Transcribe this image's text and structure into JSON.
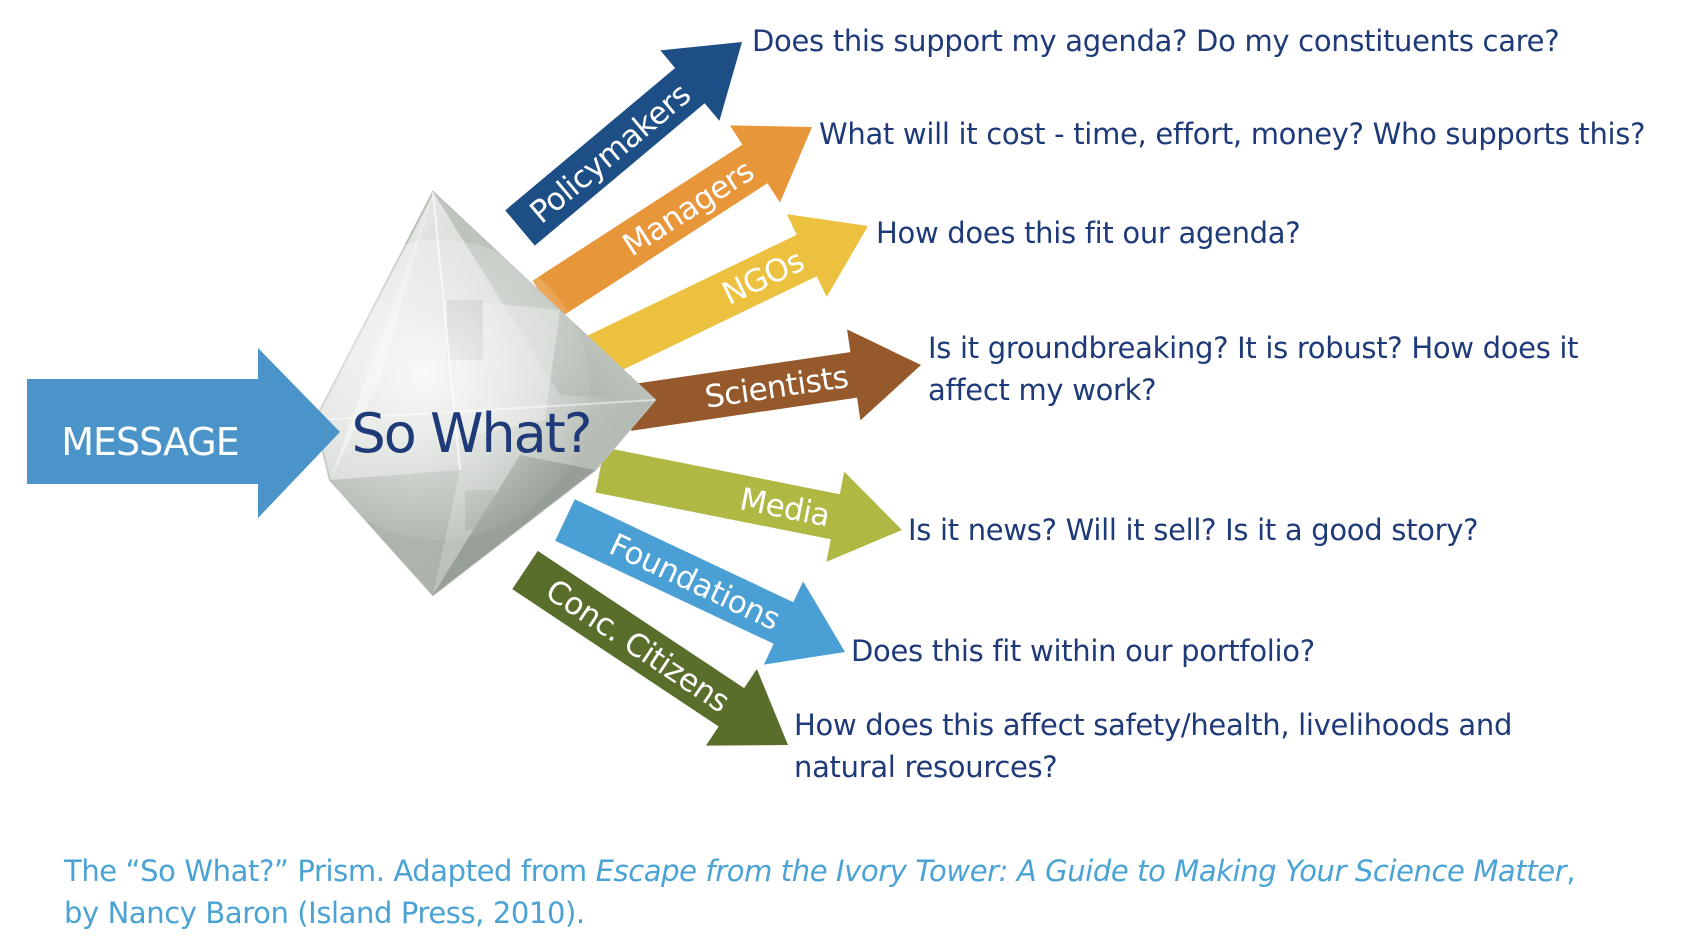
{
  "message_label": "MESSAGE",
  "prism_label": "So What?",
  "audiences": [
    {
      "label": "Policymakers",
      "question": "Does this support my agenda? Do my constituents care?",
      "color": "#1d4f86"
    },
    {
      "label": "Managers",
      "question": "What will it cost - time, effort, money? Who supports this?",
      "color": "#e8963a"
    },
    {
      "label": "NGOs",
      "question": "How does this fit our agenda?",
      "color": "#ecc140"
    },
    {
      "label": "Scientists",
      "question": "Is it groundbreaking? It is robust? How does it affect my work?",
      "color": "#96592b"
    },
    {
      "label": "Media",
      "question": "Is it news? Will it sell? Is it a good story?",
      "color": "#aeb842"
    },
    {
      "label": "Foundations",
      "question": "Does this fit within our portfolio?",
      "color": "#4a9fd4"
    },
    {
      "label": "Conc. Citizens",
      "question": "How does this affect safety/health, livelihoods and natural resources?",
      "color": "#5a6e2c"
    }
  ],
  "caption": {
    "part1": "The “So What?” Prism. Adapted from ",
    "title": "Escape from the Ivory Tower: A Guide to Making Your Science Matter",
    "part2": ",",
    "part3": "by Nancy Baron (Island Press, 2010)."
  },
  "colors": {
    "message_arrow": "#4a94c9",
    "prism_text": "#1f3a78",
    "question_text": "#1f3a78",
    "caption_text": "#4aa3d4"
  }
}
